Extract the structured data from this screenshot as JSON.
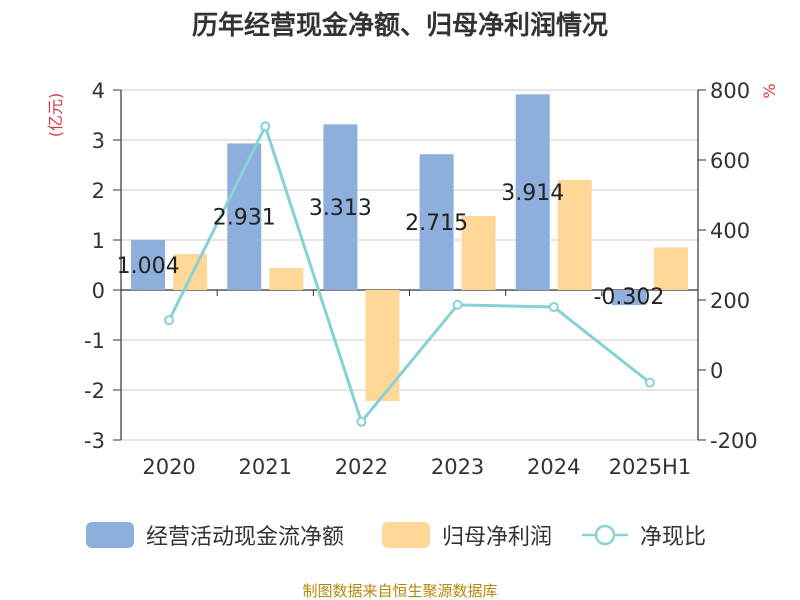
{
  "chart_data": {
    "type": "bar",
    "title": "历年经营现金净额、归母净利润情况",
    "categories": [
      "2020",
      "2021",
      "2022",
      "2023",
      "2024",
      "2025H1"
    ],
    "y_left": {
      "unit": "(亿元)",
      "range": [
        -3,
        4
      ],
      "ticks": [
        "4",
        "3",
        "2",
        "1",
        "0",
        "-1",
        "-2",
        "-3"
      ]
    },
    "y_right": {
      "unit": "%",
      "range": [
        -200,
        800
      ],
      "ticks": [
        "800",
        "600",
        "400",
        "200",
        "0",
        "-200"
      ]
    },
    "series": [
      {
        "name": "经营活动现金流净额",
        "type": "bar",
        "axis": "left",
        "color": "#8eaedb",
        "values": [
          1.004,
          2.931,
          3.313,
          2.715,
          3.914,
          -0.302
        ],
        "labels": [
          "1.004",
          "2.931",
          "3.313",
          "2.715",
          "3.914",
          "-0.302"
        ]
      },
      {
        "name": "归母净利润",
        "type": "bar",
        "axis": "left",
        "color": "#ffd897",
        "values": [
          0.72,
          0.44,
          -2.22,
          1.48,
          2.2,
          0.85
        ]
      },
      {
        "name": "净现比",
        "type": "line",
        "axis": "right",
        "color": "#86d2d6",
        "values": [
          142,
          696,
          -148,
          186,
          180,
          -36
        ]
      }
    ],
    "legend_position": "bottom",
    "grid": true
  },
  "source": "制图数据来自恒生聚源数据库"
}
